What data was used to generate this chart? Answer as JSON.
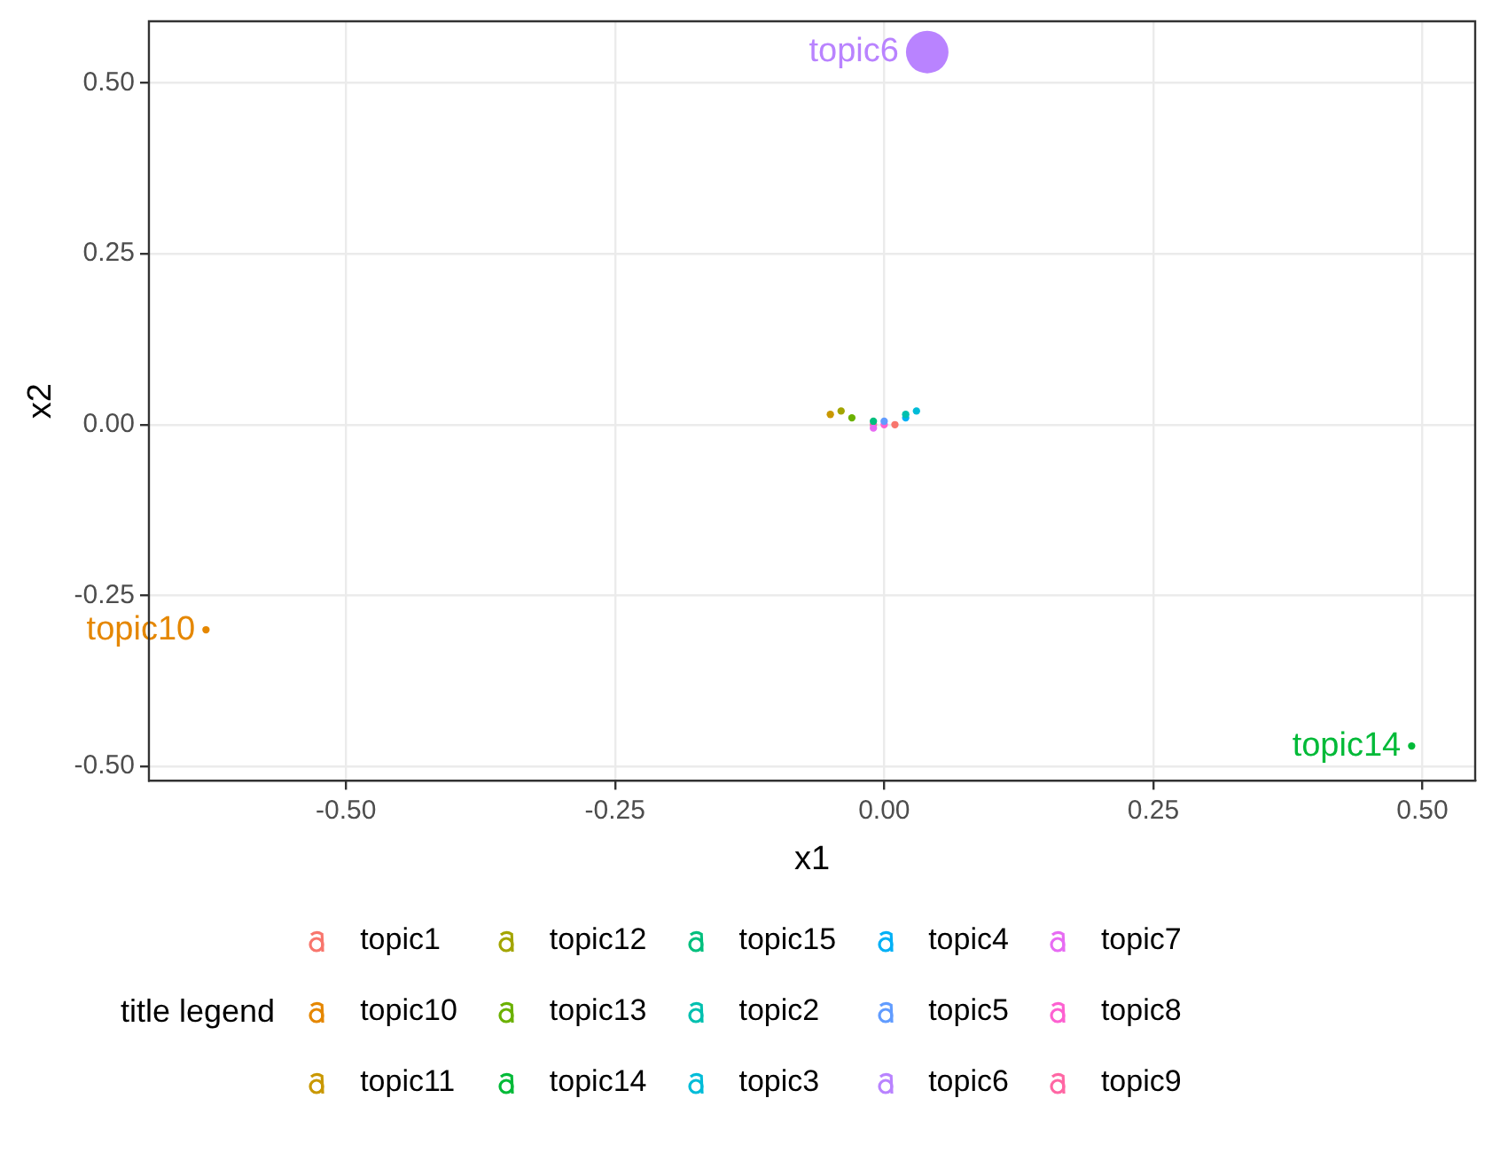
{
  "chart_data": {
    "type": "bubble",
    "xlabel": "x1",
    "ylabel": "x2",
    "legend_title": "title legend",
    "legend": "bottom",
    "grid": true,
    "annotations": [
      {
        "text": "topic6",
        "x": 0.04,
        "y": 0.545
      },
      {
        "text": "topic10",
        "x": -0.63,
        "y": -0.3
      },
      {
        "text": "topic14",
        "x": 0.49,
        "y": -0.47
      }
    ],
    "xlim": [
      -0.683,
      0.549
    ],
    "ylim": [
      -0.521,
      0.59
    ],
    "xticks": [
      {
        "value": -0.5,
        "label": "-0.50"
      },
      -0.25,
      {
        "value": 0,
        "label": "0.00"
      },
      0.25,
      {
        "value": 0.5,
        "label": "0.50"
      }
    ],
    "yticks": [
      {
        "value": -0.5,
        "label": "-0.50"
      },
      -0.25,
      {
        "value": 0,
        "label": "0.00"
      },
      0.25,
      {
        "value": 0.5,
        "label": "0.50"
      }
    ],
    "series": [
      {
        "name": "topic1",
        "color": "#f8766d",
        "x": [
          0.01
        ],
        "values": [
          0.0
        ],
        "sizes": [
          0.03
        ]
      },
      {
        "name": "topic10",
        "color": "#e58700",
        "x": [
          -0.63
        ],
        "values": [
          -0.3
        ],
        "sizes": [
          0.03
        ]
      },
      {
        "name": "topic11",
        "color": "#c99800",
        "x": [
          -0.05
        ],
        "values": [
          0.015
        ],
        "sizes": [
          0.03
        ]
      },
      {
        "name": "topic12",
        "color": "#a3a500",
        "x": [
          -0.04
        ],
        "values": [
          0.02
        ],
        "sizes": [
          0.03
        ]
      },
      {
        "name": "topic13",
        "color": "#6bb100",
        "x": [
          -0.03
        ],
        "values": [
          0.01
        ],
        "sizes": [
          0.03
        ]
      },
      {
        "name": "topic14",
        "color": "#00ba38",
        "x": [
          0.49
        ],
        "values": [
          -0.47
        ],
        "sizes": [
          0.03
        ]
      },
      {
        "name": "topic15",
        "color": "#00bf7d",
        "x": [
          -0.01
        ],
        "values": [
          0.005
        ],
        "sizes": [
          0.03
        ]
      },
      {
        "name": "topic2",
        "color": "#00c0af",
        "x": [
          0.02
        ],
        "values": [
          0.015
        ],
        "sizes": [
          0.03
        ]
      },
      {
        "name": "topic3",
        "color": "#00bcd8",
        "x": [
          0.03
        ],
        "values": [
          0.02
        ],
        "sizes": [
          0.03
        ]
      },
      {
        "name": "topic4",
        "color": "#00b0f6",
        "x": [
          0.02
        ],
        "values": [
          0.01
        ],
        "sizes": [
          0.03
        ]
      },
      {
        "name": "topic5",
        "color": "#619cff",
        "x": [
          0.0
        ],
        "values": [
          0.005
        ],
        "sizes": [
          0.03
        ]
      },
      {
        "name": "topic6",
        "color": "#b983ff",
        "x": [
          0.04
        ],
        "values": [
          0.545
        ],
        "sizes": [
          1
        ]
      },
      {
        "name": "topic7",
        "color": "#e76bf3",
        "x": [
          -0.01
        ],
        "values": [
          -0.005
        ],
        "sizes": [
          0.03
        ]
      },
      {
        "name": "topic8",
        "color": "#fd61d1",
        "x": [
          0.0
        ],
        "values": [
          0.0
        ],
        "sizes": [
          0.03
        ]
      },
      {
        "name": "topic9",
        "color": "#ff67a4",
        "x": [
          -0.01
        ],
        "values": [
          0.0
        ],
        "sizes": [
          0.03
        ]
      }
    ]
  }
}
